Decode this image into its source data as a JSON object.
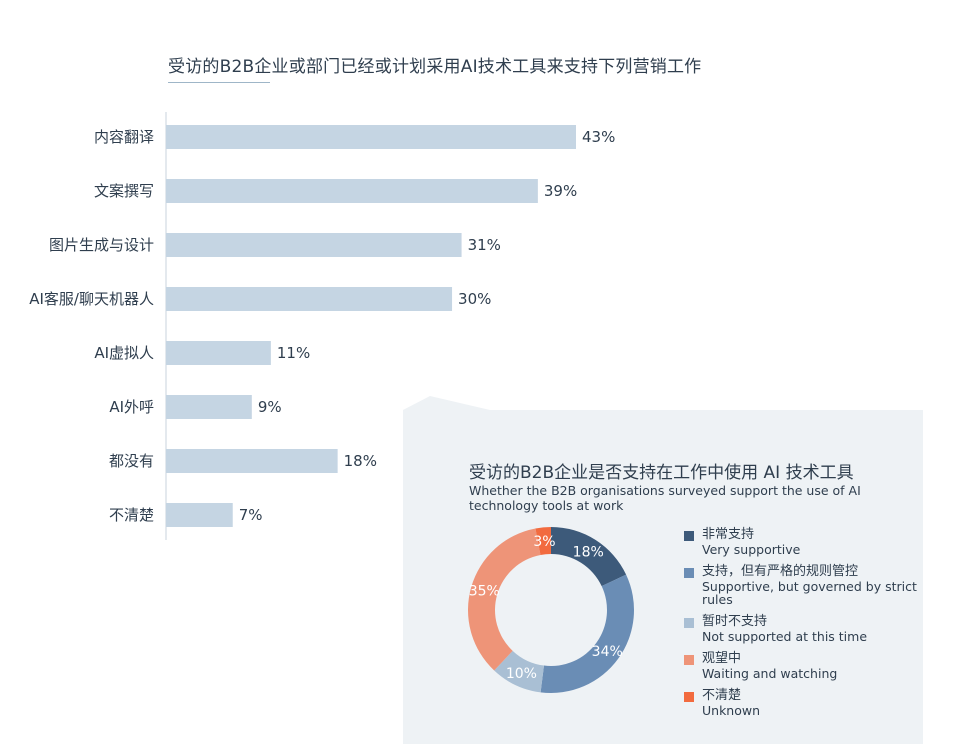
{
  "chart_data": [
    {
      "type": "bar",
      "title": "受访的B2B企业或部门已经或计划采用AI技术工具来支持下列营销工作",
      "categories": [
        "内容翻译",
        "文案撰写",
        "图片生成与设计",
        "AI客服/聊天机器人",
        "AI虚拟人",
        "AI外呼",
        "都没有",
        "不清楚"
      ],
      "values": [
        43,
        39,
        31,
        30,
        11,
        9,
        18,
        7
      ],
      "value_labels": [
        "43%",
        "39%",
        "31%",
        "30%",
        "11%",
        "9%",
        "18%",
        "7%"
      ],
      "xlim": [
        0,
        100
      ],
      "bar_color": "#c5d5e3"
    },
    {
      "type": "pie",
      "title": "受访的B2B企业是否支持在工作中使用 AI 技术工具",
      "subtitle": "Whether the B2B organisations surveyed support the use of AI technology tools at work",
      "slices": [
        {
          "label_zh": "非常支持",
          "label_en": "Very supportive",
          "value": 18,
          "label": "18%",
          "color": "#3d5a7a"
        },
        {
          "label_zh": "支持，但有严格的规则管控",
          "label_en": "Supportive, but governed by strict rules",
          "value": 34,
          "label": "34%",
          "color": "#6a8db5"
        },
        {
          "label_zh": "暂时不支持",
          "label_en": "Not supported at this time",
          "value": 10,
          "label": "10%",
          "color": "#a9bfd4"
        },
        {
          "label_zh": "观望中",
          "label_en": "Waiting and watching",
          "value": 35,
          "label": "35%",
          "color": "#ee9478"
        },
        {
          "label_zh": "不清楚",
          "label_en": "Unknown",
          "value": 3,
          "label": "3%",
          "color": "#f26b3f"
        }
      ],
      "legend_position": "right"
    }
  ]
}
